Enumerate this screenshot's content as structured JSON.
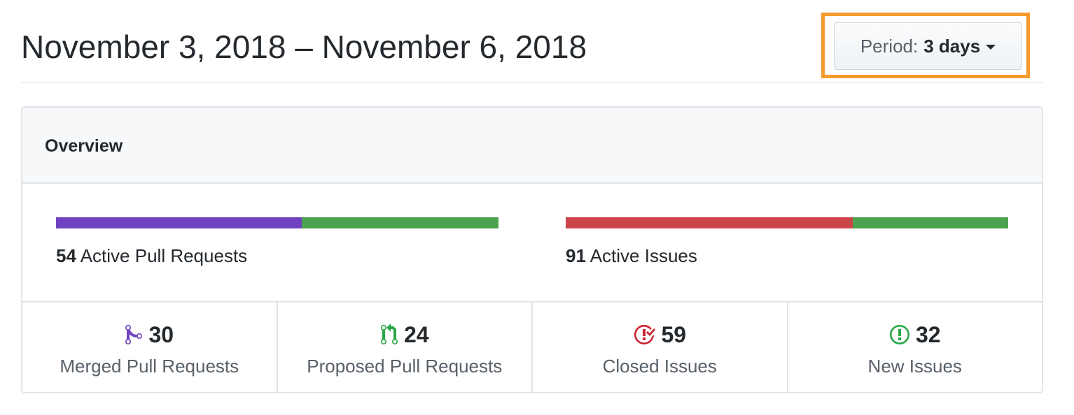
{
  "header": {
    "range_title": "November 3, 2018 – November 6, 2018",
    "period_prefix": "Period:",
    "period_value": "3 days"
  },
  "overview": {
    "title": "Overview",
    "pull_requests": {
      "count": "54",
      "label": "Active Pull Requests",
      "merged_fraction": 0.556,
      "merged_color": "#6f42c1",
      "proposed_color": "#4ba34f"
    },
    "issues": {
      "count": "91",
      "label": "Active Issues",
      "closed_fraction": 0.648,
      "closed_color": "#cb444a",
      "new_color": "#4ba34f"
    }
  },
  "stats": [
    {
      "icon": "git-merge-icon",
      "number": "30",
      "label": "Merged Pull Requests",
      "color": "#6f42c1"
    },
    {
      "icon": "git-pull-request-icon",
      "number": "24",
      "label": "Proposed Pull Requests",
      "color": "#28a745"
    },
    {
      "icon": "issue-closed-icon",
      "number": "59",
      "label": "Closed Issues",
      "color": "#cb2431"
    },
    {
      "icon": "issue-opened-icon",
      "number": "32",
      "label": "New Issues",
      "color": "#28a745"
    }
  ]
}
